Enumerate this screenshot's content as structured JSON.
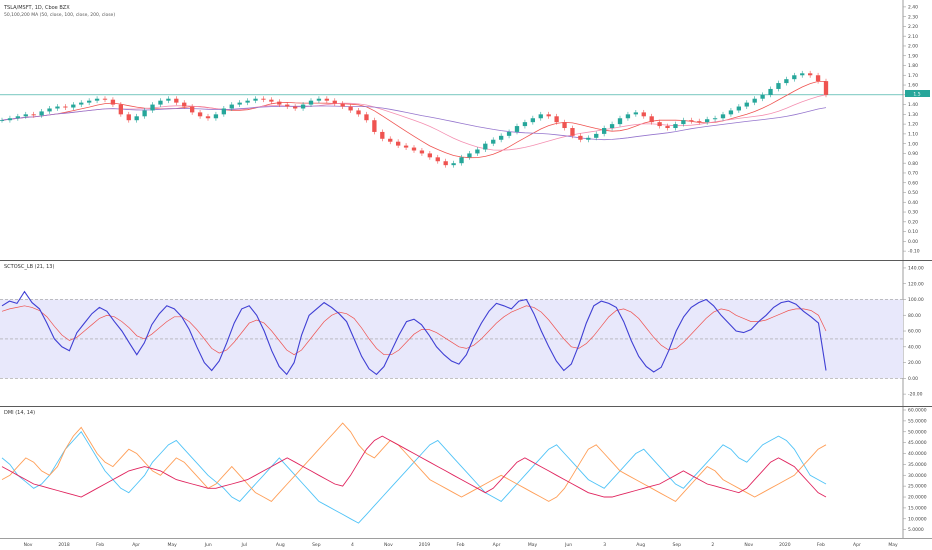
{
  "chart_data": [
    {
      "type": "candlestick",
      "title": "TSLA/MSFT, 1D, Cboe BZX",
      "subtitle": "50,100,200 MA (50, close, 100, close, 200, close)",
      "y_ticks": [
        2.4,
        2.3,
        2.2,
        2.1,
        2.0,
        1.9,
        1.8,
        1.7,
        1.6,
        1.5,
        1.4,
        1.3,
        1.2,
        1.1,
        1.0,
        0.9,
        0.8,
        0.7,
        0.6,
        0.5,
        0.4,
        0.3,
        0.2,
        0.1,
        0.0,
        -0.1
      ],
      "ylim": [
        -0.15,
        2.45
      ],
      "hline": 1.5,
      "last_value": "1.5",
      "colors": {
        "up": "#26a69a",
        "down": "#ef5350",
        "ma50": "#ef5350",
        "ma100": "#f48fb1",
        "ma200": "#9575cd",
        "hline": "#26a69a"
      },
      "closes": [
        1.24,
        1.26,
        1.28,
        1.3,
        1.29,
        1.33,
        1.36,
        1.38,
        1.37,
        1.4,
        1.42,
        1.44,
        1.46,
        1.45,
        1.4,
        1.3,
        1.24,
        1.28,
        1.34,
        1.4,
        1.44,
        1.46,
        1.42,
        1.38,
        1.32,
        1.28,
        1.26,
        1.3,
        1.36,
        1.4,
        1.42,
        1.44,
        1.46,
        1.45,
        1.43,
        1.4,
        1.38,
        1.36,
        1.4,
        1.44,
        1.46,
        1.44,
        1.41,
        1.38,
        1.34,
        1.3,
        1.24,
        1.12,
        1.05,
        1.02,
        0.98,
        0.96,
        0.93,
        0.9,
        0.86,
        0.82,
        0.78,
        0.8,
        0.86,
        0.9,
        0.94,
        1.0,
        1.04,
        1.08,
        1.12,
        1.18,
        1.22,
        1.26,
        1.3,
        1.28,
        1.22,
        1.16,
        1.08,
        1.04,
        1.06,
        1.1,
        1.16,
        1.2,
        1.26,
        1.3,
        1.32,
        1.28,
        1.22,
        1.18,
        1.16,
        1.2,
        1.24,
        1.23,
        1.22,
        1.25,
        1.26,
        1.3,
        1.34,
        1.38,
        1.42,
        1.46,
        1.5,
        1.56,
        1.62,
        1.66,
        1.7,
        1.72,
        1.7,
        1.64,
        1.5
      ]
    },
    {
      "type": "line",
      "title": "SCTOSC_LB (21, 13)",
      "y_ticks": [
        140.0,
        120.0,
        100.0,
        80.0,
        60.0,
        40.0,
        20.0,
        0.0,
        -20.0
      ],
      "ylim": [
        -30,
        145
      ],
      "band": [
        0,
        100
      ],
      "midline": 50,
      "series": [
        {
          "values": [
            92,
            98,
            95,
            110,
            96,
            88,
            70,
            50,
            40,
            35,
            58,
            70,
            82,
            90,
            85,
            72,
            60,
            45,
            30,
            45,
            68,
            82,
            92,
            88,
            78,
            62,
            40,
            20,
            10,
            22,
            45,
            70,
            88,
            92,
            80,
            60,
            35,
            15,
            5,
            20,
            55,
            80,
            88,
            96,
            90,
            82,
            72,
            50,
            28,
            12,
            5,
            15,
            35,
            55,
            72,
            75,
            68,
            55,
            40,
            30,
            22,
            18,
            30,
            52,
            70,
            85,
            95,
            92,
            88,
            98,
            100,
            82,
            60,
            40,
            22,
            10,
            18,
            42,
            70,
            92,
            98,
            95,
            90,
            72,
            48,
            28,
            15,
            8,
            14,
            35,
            60,
            78,
            90,
            96,
            100,
            92,
            80,
            70,
            60,
            58,
            62,
            72,
            80,
            90,
            96,
            98,
            94,
            85,
            78,
            70,
            10
          ]
        },
        {
          "values": [
            85,
            88,
            90,
            92,
            90,
            86,
            78,
            66,
            55,
            48,
            52,
            60,
            68,
            76,
            80,
            78,
            72,
            64,
            54,
            50,
            56,
            64,
            72,
            78,
            78,
            72,
            62,
            50,
            38,
            32,
            36,
            46,
            58,
            70,
            74,
            70,
            60,
            48,
            36,
            30,
            36,
            48,
            60,
            72,
            80,
            84,
            82,
            76,
            64,
            50,
            38,
            30,
            30,
            36,
            46,
            56,
            62,
            62,
            58,
            52,
            46,
            40,
            38,
            42,
            50,
            60,
            70,
            78,
            84,
            88,
            92,
            90,
            84,
            74,
            62,
            50,
            40,
            38,
            44,
            54,
            66,
            78,
            86,
            88,
            84,
            76,
            64,
            52,
            42,
            36,
            38,
            46,
            56,
            66,
            76,
            84,
            88,
            86,
            80,
            76,
            72,
            72,
            74,
            78,
            82,
            86,
            88,
            88,
            86,
            80,
            60
          ]
        }
      ]
    },
    {
      "type": "line",
      "title": "DMI (14, 14)",
      "y_ticks": [
        "60.0000",
        "55.0000",
        "50.0000",
        "45.0000",
        "40.0000",
        "35.0000",
        "30.0000",
        "25.0000",
        "20.0000",
        "15.0000",
        "10.0000",
        "5.0000"
      ],
      "ylim": [
        3,
        60
      ],
      "series": [
        {
          "values": [
            38,
            35,
            30,
            27,
            24,
            26,
            30,
            36,
            42,
            46,
            50,
            44,
            38,
            32,
            28,
            24,
            22,
            26,
            30,
            36,
            40,
            44,
            46,
            42,
            38,
            34,
            30,
            27,
            24,
            20,
            18,
            22,
            26,
            30,
            34,
            38,
            34,
            30,
            26,
            22,
            18,
            16,
            14,
            12,
            10,
            8,
            12,
            16,
            20,
            24,
            28,
            32,
            36,
            40,
            44,
            46,
            42,
            38,
            34,
            30,
            26,
            22,
            20,
            18,
            22,
            26,
            30,
            34,
            38,
            42,
            44,
            40,
            36,
            32,
            28,
            26,
            24,
            28,
            32,
            36,
            40,
            42,
            38,
            34,
            30,
            26,
            24,
            28,
            32,
            36,
            40,
            44,
            42,
            38,
            36,
            40,
            44,
            46,
            48,
            46,
            42,
            36,
            30,
            28,
            26
          ]
        },
        {
          "values": [
            28,
            30,
            34,
            38,
            36,
            32,
            30,
            34,
            42,
            48,
            52,
            46,
            40,
            36,
            34,
            38,
            42,
            40,
            36,
            32,
            30,
            34,
            38,
            36,
            32,
            28,
            24,
            26,
            30,
            34,
            30,
            26,
            22,
            20,
            18,
            22,
            26,
            30,
            34,
            38,
            42,
            46,
            50,
            54,
            50,
            44,
            40,
            38,
            42,
            46,
            44,
            40,
            36,
            32,
            28,
            26,
            24,
            22,
            20,
            22,
            24,
            26,
            28,
            30,
            28,
            26,
            24,
            22,
            20,
            18,
            20,
            24,
            30,
            36,
            42,
            44,
            40,
            36,
            32,
            30,
            28,
            26,
            24,
            22,
            20,
            18,
            22,
            26,
            30,
            34,
            32,
            28,
            26,
            24,
            22,
            20,
            22,
            24,
            26,
            28,
            30,
            34,
            38,
            42,
            44
          ]
        },
        {
          "values": [
            34,
            32,
            30,
            28,
            26,
            25,
            24,
            23,
            22,
            21,
            20,
            22,
            24,
            26,
            28,
            30,
            32,
            33,
            34,
            33,
            32,
            30,
            28,
            27,
            26,
            25,
            24,
            24,
            25,
            26,
            27,
            28,
            30,
            32,
            34,
            36,
            38,
            36,
            34,
            32,
            30,
            28,
            26,
            25,
            30,
            36,
            42,
            46,
            48,
            46,
            44,
            42,
            40,
            38,
            36,
            34,
            32,
            30,
            28,
            26,
            24,
            22,
            24,
            28,
            32,
            36,
            38,
            36,
            34,
            32,
            30,
            28,
            26,
            24,
            22,
            21,
            20,
            20,
            21,
            22,
            23,
            24,
            25,
            26,
            28,
            30,
            32,
            30,
            28,
            26,
            25,
            24,
            23,
            22,
            24,
            28,
            32,
            36,
            38,
            36,
            34,
            30,
            26,
            22,
            20
          ]
        }
      ]
    }
  ],
  "x_axis": {
    "labels": [
      "Nov",
      "2018",
      "Feb",
      "Apr",
      "May",
      "Jun",
      "Jul",
      "Aug",
      "Sep",
      "4",
      "Nov",
      "2019",
      "Feb",
      "Apr",
      "May",
      "Jun",
      "3",
      "Aug",
      "Sep",
      "2",
      "Nov",
      "2020",
      "Feb",
      "Apr",
      "May"
    ]
  }
}
